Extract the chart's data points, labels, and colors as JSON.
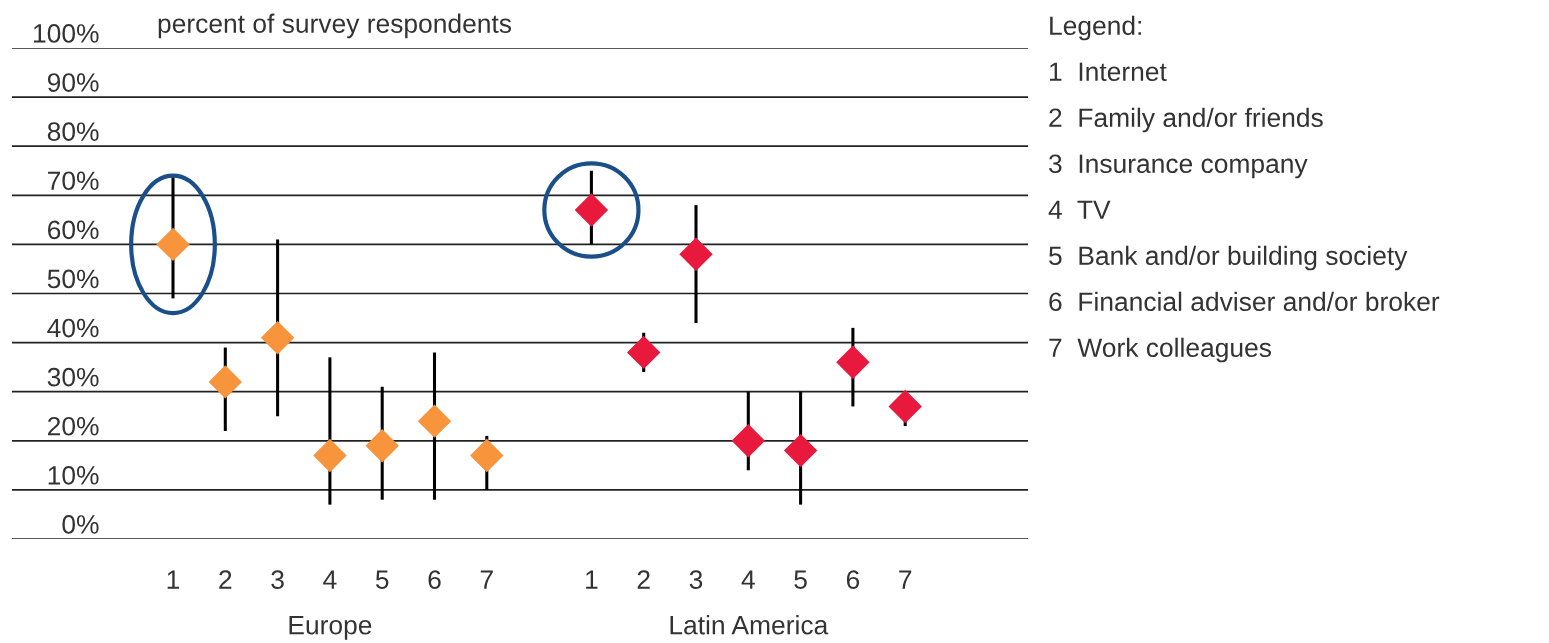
{
  "chart_data": {
    "type": "scatter",
    "ylabel": "percent of survey respondents",
    "categories": [
      "1",
      "2",
      "3",
      "4",
      "5",
      "6",
      "7",
      null,
      "1",
      "2",
      "3",
      "4",
      "5",
      "6",
      "7"
    ],
    "series": [
      {
        "color": "#f7943c",
        "values": [
          60,
          32,
          41,
          17,
          19,
          24,
          17,
          null,
          null,
          null,
          null,
          null,
          null,
          null,
          null
        ],
        "errors": [
          [
            49,
            74
          ],
          [
            22,
            39
          ],
          [
            25,
            61
          ],
          [
            7,
            37
          ],
          [
            8,
            31
          ],
          [
            8,
            38
          ],
          [
            10,
            21
          ],
          null,
          null,
          null,
          null,
          null,
          null,
          null,
          null
        ]
      },
      {
        "color": "#e8193c",
        "values": [
          null,
          null,
          null,
          null,
          null,
          null,
          null,
          null,
          67,
          38,
          58,
          20,
          18,
          36,
          27
        ],
        "errors": [
          null,
          null,
          null,
          null,
          null,
          null,
          null,
          null,
          [
            60,
            75
          ],
          [
            34,
            42
          ],
          [
            44,
            68
          ],
          [
            14,
            30
          ],
          [
            7,
            30
          ],
          [
            27,
            43
          ],
          [
            23,
            30
          ]
        ]
      }
    ],
    "ylim": [
      0,
      100
    ],
    "yticks": [
      {
        "value": 0,
        "label": "0%"
      },
      {
        "value": 10,
        "label": "10%"
      },
      {
        "value": 20,
        "label": "20%"
      },
      {
        "value": 30,
        "label": "30%"
      },
      {
        "value": 40,
        "label": "40%"
      },
      {
        "value": 50,
        "label": "50%"
      },
      {
        "value": 60,
        "label": "60%"
      },
      {
        "value": 70,
        "label": "70%"
      },
      {
        "value": 80,
        "label": "80%"
      },
      {
        "value": 90,
        "label": "90%"
      },
      {
        "value": 100,
        "label": "100%"
      }
    ],
    "grid": "y",
    "marker": "diamond",
    "legend": false,
    "annotations": [
      "Europe",
      "Latin America",
      "Legend:",
      "1  Internet",
      "2  Family and/or friends",
      "3  Insurance company",
      "4  TV",
      "5  Bank and/or building society",
      "6  Financial adviser and/or broker",
      "7  Work colleagues"
    ]
  }
}
